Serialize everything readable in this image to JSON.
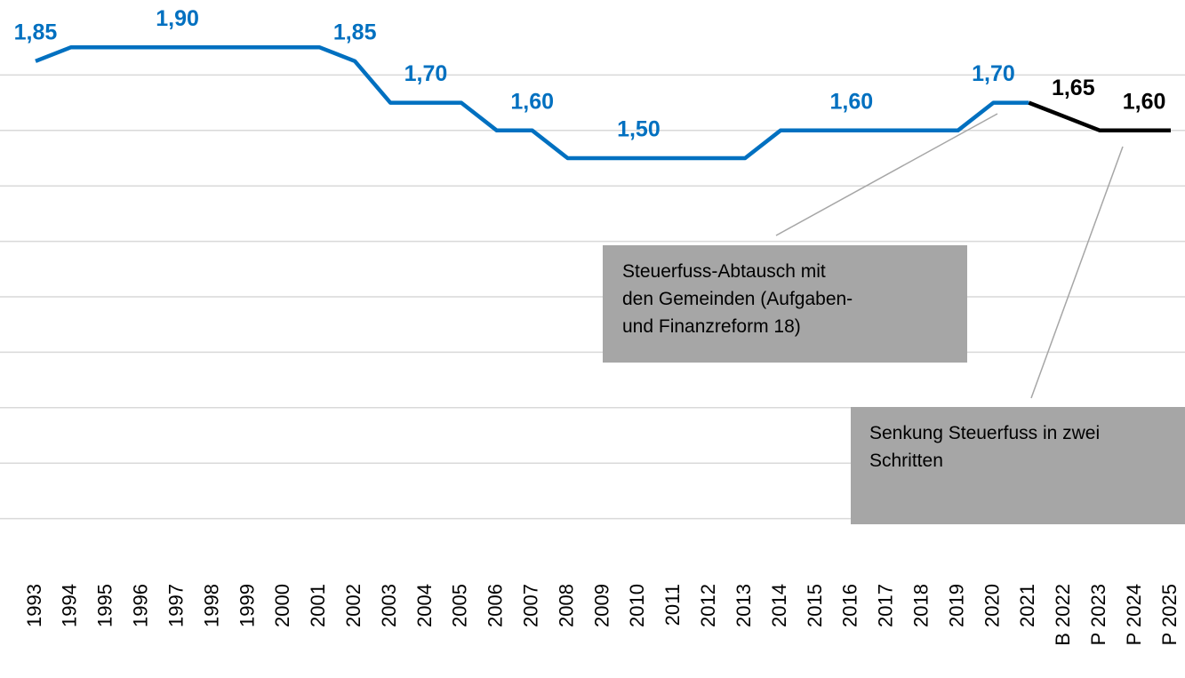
{
  "chart_data": {
    "type": "line",
    "categories": [
      "1993",
      "1994",
      "1995",
      "1996",
      "1997",
      "1998",
      "1999",
      "2000",
      "2001",
      "2002",
      "2003",
      "2004",
      "2005",
      "2006",
      "2007",
      "2008",
      "2009",
      "2010",
      "2011",
      "2012",
      "2013",
      "2014",
      "2015",
      "2016",
      "2017",
      "2018",
      "2019",
      "2020",
      "2021",
      "B 2022",
      "P 2023",
      "P 2024",
      "P 2025"
    ],
    "series": [
      {
        "color": "#0070c0",
        "values": [
          1.85,
          1.9,
          1.9,
          1.9,
          1.9,
          1.9,
          1.9,
          1.9,
          1.9,
          1.85,
          1.7,
          1.7,
          1.7,
          1.6,
          1.6,
          1.5,
          1.5,
          1.5,
          1.5,
          1.5,
          1.5,
          1.6,
          1.6,
          1.6,
          1.6,
          1.6,
          1.6,
          1.7,
          1.7,
          null,
          null,
          null,
          null
        ],
        "value_labels": [
          "1,85",
          null,
          null,
          null,
          "1,90",
          null,
          null,
          null,
          null,
          "1,85",
          null,
          "1,70",
          null,
          null,
          "1,60",
          null,
          null,
          "1,50",
          null,
          null,
          null,
          null,
          null,
          "1,60",
          null,
          null,
          null,
          "1,70",
          null,
          null,
          null,
          null,
          null
        ]
      },
      {
        "color": "#000000",
        "values": [
          null,
          null,
          null,
          null,
          null,
          null,
          null,
          null,
          null,
          null,
          null,
          null,
          null,
          null,
          null,
          null,
          null,
          null,
          null,
          null,
          null,
          null,
          null,
          null,
          null,
          null,
          null,
          null,
          1.7,
          1.65,
          1.6,
          1.6,
          1.6
        ],
        "value_labels": [
          null,
          null,
          null,
          null,
          null,
          null,
          null,
          null,
          null,
          null,
          null,
          null,
          null,
          null,
          null,
          null,
          null,
          null,
          null,
          null,
          null,
          null,
          null,
          null,
          null,
          null,
          null,
          null,
          null,
          "1,65",
          null,
          "1,60",
          null
        ]
      }
    ],
    "ylim": [
      0,
      2.0
    ],
    "yticks": [
      0.2,
      0.4,
      0.6,
      0.8,
      1.0,
      1.2,
      1.4,
      1.6,
      1.8
    ],
    "grid": true,
    "annotations": [
      {
        "lines": [
          "Steuerfuss-Abtausch mit",
          "den Gemeinden (Aufgaben-",
          "und Finanzreform 18)"
        ]
      },
      {
        "lines": [
          "Senkung Steuerfuss in zwei",
          "Schritten"
        ]
      }
    ]
  }
}
